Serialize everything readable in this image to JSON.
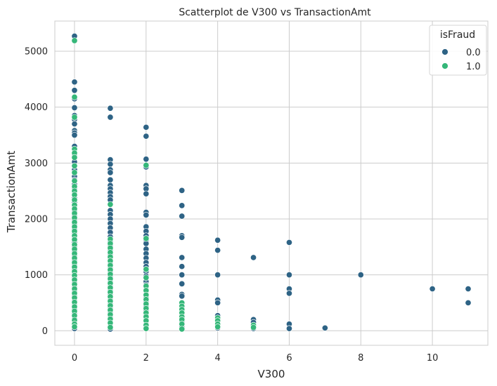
{
  "chart_data": {
    "type": "scatter",
    "title": "Scatterplot de V300 vs TransactionAmt",
    "xlabel": "V300",
    "ylabel": "TransactionAmt",
    "xlim": [
      -0.55,
      11.55
    ],
    "ylim": [
      -260,
      5540
    ],
    "xticks": [
      0,
      2,
      4,
      6,
      8,
      10
    ],
    "yticks": [
      0,
      1000,
      2000,
      3000,
      4000,
      5000
    ],
    "grid": true,
    "legend": {
      "title": "isFraud",
      "placement": "top-right",
      "entries": [
        {
          "label": "0.0",
          "color": "#2e6385"
        },
        {
          "label": "1.0",
          "color": "#35b779"
        }
      ]
    },
    "series": [
      {
        "name": "0.0",
        "color": "#2e6385",
        "points": [
          [
            0,
            5270
          ],
          [
            0,
            4450
          ],
          [
            0,
            4300
          ],
          [
            0,
            4150
          ],
          [
            0,
            3990
          ],
          [
            0,
            3850
          ],
          [
            0,
            3780
          ],
          [
            0,
            3700
          ],
          [
            0,
            3580
          ],
          [
            0,
            3540
          ],
          [
            0,
            3500
          ],
          [
            0,
            3300
          ],
          [
            0,
            3150
          ],
          [
            0,
            3020
          ],
          [
            0,
            2880
          ],
          [
            0,
            2760
          ],
          [
            0,
            2700
          ],
          [
            0,
            2620
          ],
          [
            0,
            2540
          ],
          [
            0,
            2460
          ],
          [
            0,
            2380
          ],
          [
            0,
            2300
          ],
          [
            0,
            2220
          ],
          [
            0,
            2140
          ],
          [
            0,
            2060
          ],
          [
            0,
            1980
          ],
          [
            0,
            1900
          ],
          [
            0,
            1820
          ],
          [
            0,
            1740
          ],
          [
            0,
            1660
          ],
          [
            0,
            1580
          ],
          [
            0,
            1500
          ],
          [
            0,
            1420
          ],
          [
            0,
            1340
          ],
          [
            0,
            1260
          ],
          [
            0,
            1180
          ],
          [
            0,
            1100
          ],
          [
            0,
            1020
          ],
          [
            0,
            940
          ],
          [
            0,
            860
          ],
          [
            0,
            780
          ],
          [
            0,
            700
          ],
          [
            0,
            620
          ],
          [
            0,
            540
          ],
          [
            0,
            460
          ],
          [
            0,
            380
          ],
          [
            0,
            300
          ],
          [
            0,
            220
          ],
          [
            0,
            150
          ],
          [
            0,
            90
          ],
          [
            0,
            40
          ],
          [
            1,
            3980
          ],
          [
            1,
            3820
          ],
          [
            1,
            3060
          ],
          [
            1,
            2980
          ],
          [
            1,
            2880
          ],
          [
            1,
            2830
          ],
          [
            1,
            2700
          ],
          [
            1,
            2600
          ],
          [
            1,
            2540
          ],
          [
            1,
            2470
          ],
          [
            1,
            2400
          ],
          [
            1,
            2340
          ],
          [
            1,
            2150
          ],
          [
            1,
            2080
          ],
          [
            1,
            2000
          ],
          [
            1,
            1920
          ],
          [
            1,
            1840
          ],
          [
            1,
            1760
          ],
          [
            1,
            1680
          ],
          [
            1,
            1600
          ],
          [
            1,
            1520
          ],
          [
            1,
            1440
          ],
          [
            1,
            1360
          ],
          [
            1,
            1280
          ],
          [
            1,
            1200
          ],
          [
            1,
            1120
          ],
          [
            1,
            1040
          ],
          [
            1,
            960
          ],
          [
            1,
            880
          ],
          [
            1,
            800
          ],
          [
            1,
            720
          ],
          [
            1,
            640
          ],
          [
            1,
            560
          ],
          [
            1,
            480
          ],
          [
            1,
            400
          ],
          [
            1,
            320
          ],
          [
            1,
            240
          ],
          [
            1,
            160
          ],
          [
            1,
            80
          ],
          [
            1,
            30
          ],
          [
            2,
            3640
          ],
          [
            2,
            3480
          ],
          [
            2,
            3070
          ],
          [
            2,
            2930
          ],
          [
            2,
            2600
          ],
          [
            2,
            2540
          ],
          [
            2,
            2450
          ],
          [
            2,
            2120
          ],
          [
            2,
            2070
          ],
          [
            2,
            1860
          ],
          [
            2,
            1780
          ],
          [
            2,
            1700
          ],
          [
            2,
            1620
          ],
          [
            2,
            1560
          ],
          [
            2,
            1460
          ],
          [
            2,
            1380
          ],
          [
            2,
            1300
          ],
          [
            2,
            1220
          ],
          [
            2,
            1150
          ],
          [
            2,
            1060
          ],
          [
            2,
            980
          ],
          [
            2,
            880
          ],
          [
            2,
            820
          ],
          [
            2,
            740
          ],
          [
            2,
            660
          ],
          [
            2,
            600
          ],
          [
            2,
            520
          ],
          [
            2,
            440
          ],
          [
            2,
            360
          ],
          [
            2,
            280
          ],
          [
            2,
            200
          ],
          [
            2,
            120
          ],
          [
            2,
            50
          ],
          [
            3,
            2510
          ],
          [
            3,
            2240
          ],
          [
            3,
            2050
          ],
          [
            3,
            1700
          ],
          [
            3,
            1670
          ],
          [
            3,
            1310
          ],
          [
            3,
            1150
          ],
          [
            3,
            1000
          ],
          [
            3,
            840
          ],
          [
            3,
            650
          ],
          [
            3,
            620
          ],
          [
            3,
            420
          ],
          [
            3,
            280
          ],
          [
            3,
            150
          ],
          [
            3,
            60
          ],
          [
            4,
            1620
          ],
          [
            4,
            1440
          ],
          [
            4,
            1000
          ],
          [
            4,
            550
          ],
          [
            4,
            500
          ],
          [
            4,
            270
          ],
          [
            4,
            200
          ],
          [
            4,
            120
          ],
          [
            4,
            50
          ],
          [
            5,
            1310
          ],
          [
            5,
            200
          ],
          [
            5,
            150
          ],
          [
            5,
            80
          ],
          [
            5,
            40
          ],
          [
            6,
            1580
          ],
          [
            6,
            1000
          ],
          [
            6,
            750
          ],
          [
            6,
            670
          ],
          [
            6,
            120
          ],
          [
            6,
            40
          ],
          [
            7,
            50
          ],
          [
            8,
            1000
          ],
          [
            10,
            750
          ],
          [
            11,
            750
          ],
          [
            11,
            500
          ]
        ]
      },
      {
        "name": "1.0",
        "color": "#35b779",
        "points": [
          [
            0,
            5190
          ],
          [
            0,
            4180
          ],
          [
            0,
            3820
          ],
          [
            0,
            3250
          ],
          [
            0,
            3180
          ],
          [
            0,
            3100
          ],
          [
            0,
            2950
          ],
          [
            0,
            2830
          ],
          [
            0,
            2680
          ],
          [
            0,
            2580
          ],
          [
            0,
            2500
          ],
          [
            0,
            2430
          ],
          [
            0,
            2340
          ],
          [
            0,
            2250
          ],
          [
            0,
            2180
          ],
          [
            0,
            2100
          ],
          [
            0,
            2020
          ],
          [
            0,
            1940
          ],
          [
            0,
            1860
          ],
          [
            0,
            1780
          ],
          [
            0,
            1700
          ],
          [
            0,
            1630
          ],
          [
            0,
            1540
          ],
          [
            0,
            1460
          ],
          [
            0,
            1380
          ],
          [
            0,
            1300
          ],
          [
            0,
            1220
          ],
          [
            0,
            1140
          ],
          [
            0,
            1060
          ],
          [
            0,
            990
          ],
          [
            0,
            910
          ],
          [
            0,
            830
          ],
          [
            0,
            750
          ],
          [
            0,
            670
          ],
          [
            0,
            590
          ],
          [
            0,
            510
          ],
          [
            0,
            430
          ],
          [
            0,
            350
          ],
          [
            0,
            270
          ],
          [
            0,
            190
          ],
          [
            0,
            120
          ],
          [
            0,
            70
          ],
          [
            1,
            2260
          ],
          [
            1,
            1640
          ],
          [
            1,
            1560
          ],
          [
            1,
            1480
          ],
          [
            1,
            1400
          ],
          [
            1,
            1320
          ],
          [
            1,
            1250
          ],
          [
            1,
            1170
          ],
          [
            1,
            1090
          ],
          [
            1,
            1010
          ],
          [
            1,
            930
          ],
          [
            1,
            850
          ],
          [
            1,
            770
          ],
          [
            1,
            690
          ],
          [
            1,
            610
          ],
          [
            1,
            530
          ],
          [
            1,
            450
          ],
          [
            1,
            370
          ],
          [
            1,
            290
          ],
          [
            1,
            210
          ],
          [
            1,
            140
          ],
          [
            1,
            60
          ],
          [
            2,
            2960
          ],
          [
            2,
            1650
          ],
          [
            2,
            1100
          ],
          [
            2,
            950
          ],
          [
            2,
            800
          ],
          [
            2,
            720
          ],
          [
            2,
            640
          ],
          [
            2,
            560
          ],
          [
            2,
            480
          ],
          [
            2,
            400
          ],
          [
            2,
            320
          ],
          [
            2,
            250
          ],
          [
            2,
            180
          ],
          [
            2,
            100
          ],
          [
            2,
            40
          ],
          [
            3,
            500
          ],
          [
            3,
            440
          ],
          [
            3,
            380
          ],
          [
            3,
            320
          ],
          [
            3,
            250
          ],
          [
            3,
            200
          ],
          [
            3,
            120
          ],
          [
            3,
            30
          ],
          [
            4,
            230
          ],
          [
            4,
            180
          ],
          [
            4,
            120
          ],
          [
            4,
            70
          ],
          [
            5,
            100
          ],
          [
            5,
            60
          ]
        ]
      }
    ]
  }
}
